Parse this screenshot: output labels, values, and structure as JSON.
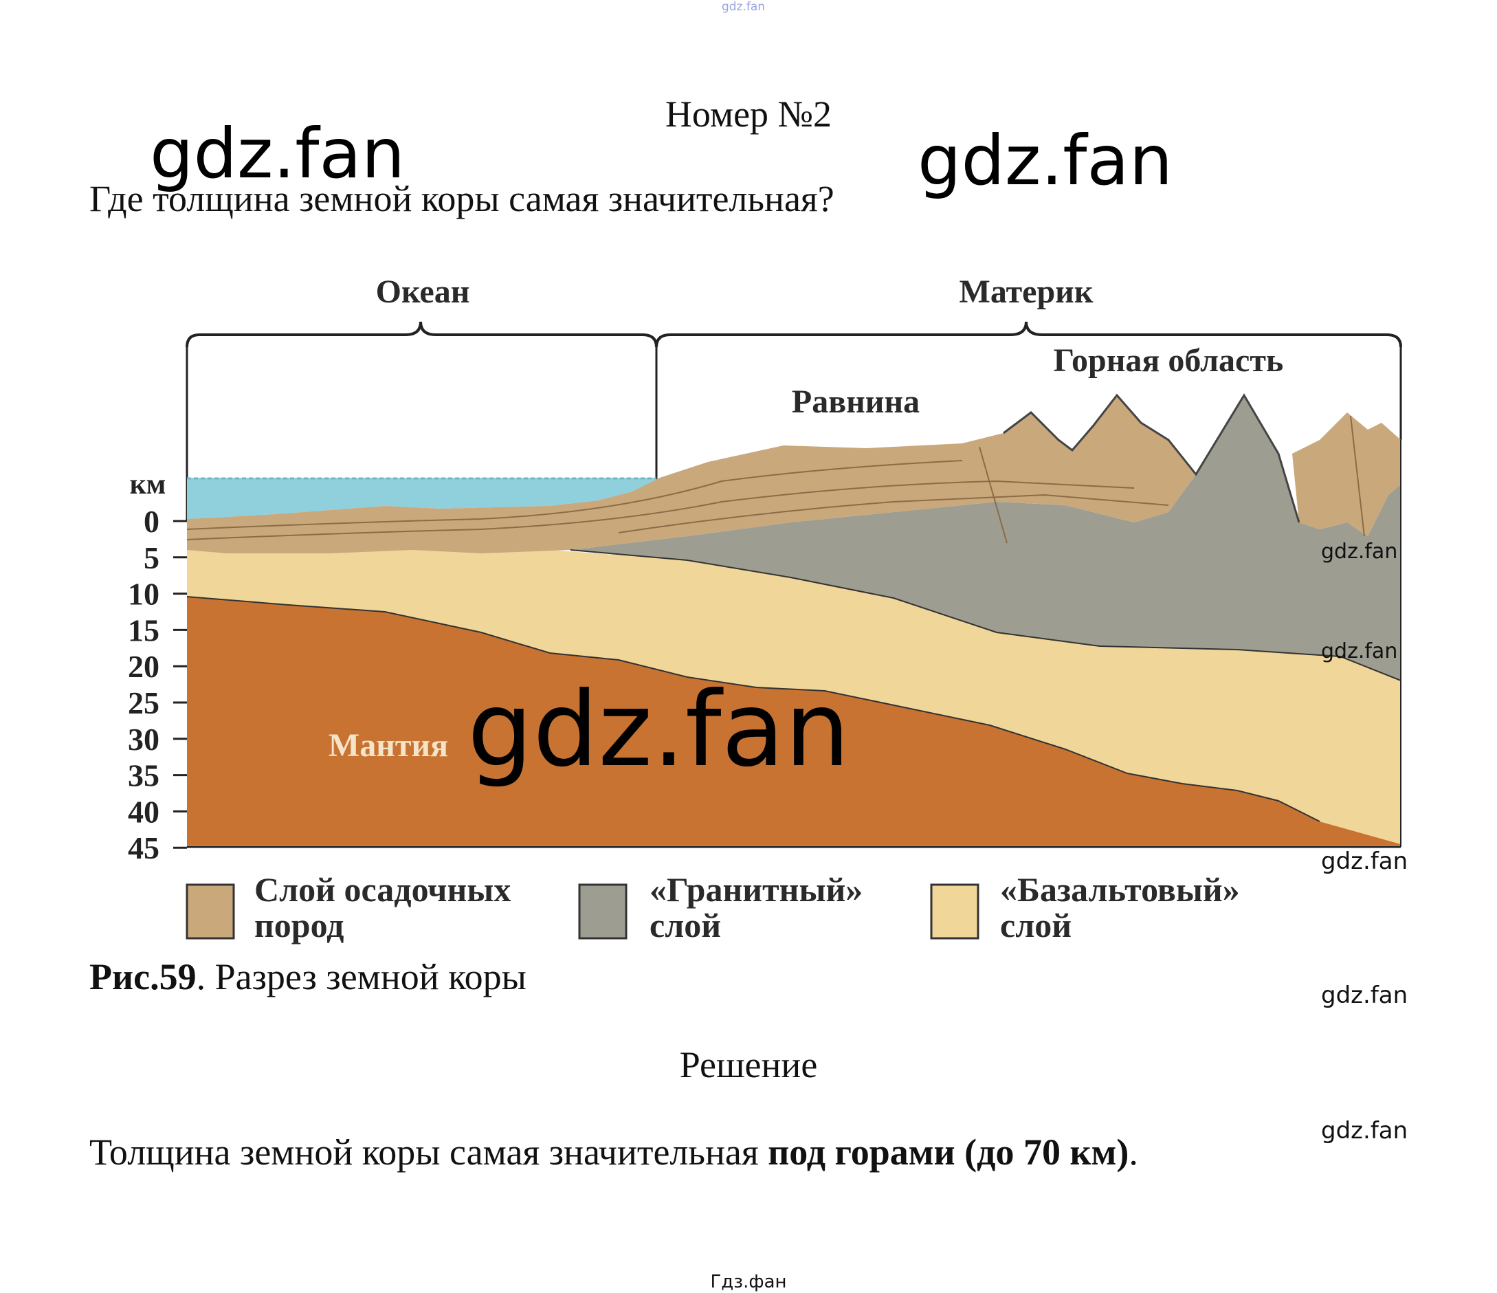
{
  "watermarks": {
    "top_small": "gdz.fan",
    "large_1": "gdz.fan",
    "large_2": "gdz.fan",
    "center_big": "gdz.fan",
    "side_1": "gdz.fan",
    "side_2": "gdz.fan",
    "side_3": "gdz.fan",
    "side_4": "gdz.fan",
    "side_5": "gdz.fan"
  },
  "heading": "Номер №2",
  "question": "Где толщина земной коры самая значительная?",
  "figure": {
    "region_ocean": "Океан",
    "region_continent": "Материк",
    "plain": "Равнина",
    "mountains": "Горная область",
    "mantle": "Мантия",
    "unit": "км",
    "depth_ticks": [
      "0",
      "5",
      "10",
      "15",
      "20",
      "25",
      "30",
      "35",
      "40",
      "45"
    ],
    "legend": [
      {
        "line1": "Слой осадочных",
        "line2": "пород",
        "color": "#c9a87c"
      },
      {
        "line1": "«Гранитный»",
        "line2": "слой",
        "color": "#9e9d92"
      },
      {
        "line1": "«Базальтовый»",
        "line2": "слой",
        "color": "#f0d699"
      }
    ],
    "colors": {
      "sediment": "#c9a87c",
      "granite": "#9e9d92",
      "basalt": "#f0d699",
      "mantle": "#c97332",
      "water": "#8fd0dc"
    }
  },
  "caption": {
    "prefix": "Рис.59",
    "text": ". Разрез земной коры"
  },
  "solution_title": "Решение",
  "answer": {
    "start": "Толщина земной коры самая значительная ",
    "bold": "под горами (до 70 км)",
    "end": "."
  },
  "footer": "Гдз.фан"
}
